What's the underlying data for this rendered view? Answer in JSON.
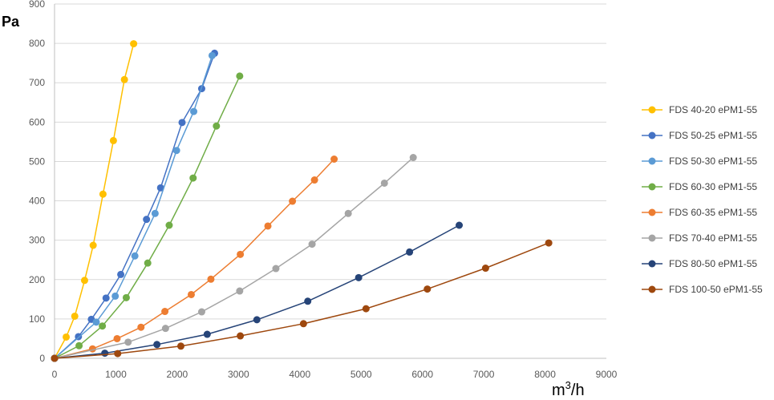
{
  "chart_data": {
    "type": "line",
    "xlabel": "m³/h",
    "xlabel_base": "m",
    "xlabel_sup": "3",
    "xlabel_tail": "/h",
    "ylabel": "Pa",
    "xlim": [
      0,
      9000
    ],
    "ylim": [
      0,
      900
    ],
    "x_ticks": [
      "0",
      "1000",
      "2000",
      "3000",
      "4000",
      "5000",
      "6000",
      "7000",
      "8000",
      "9000"
    ],
    "y_ticks": [
      "0",
      "100",
      "200",
      "300",
      "400",
      "500",
      "600",
      "700",
      "800",
      "900"
    ],
    "grid": "horizontal",
    "legend_position": "right",
    "series": [
      {
        "name": "FDS 40-20 ePM1-55",
        "color": "#FFC000",
        "x": [
          0,
          190,
          330,
          490,
          630,
          790,
          960,
          1140,
          1290
        ],
        "y": [
          0,
          54,
          107,
          198,
          287,
          417,
          553,
          708,
          799
        ]
      },
      {
        "name": "FDS 50-25 ePM1-55",
        "color": "#4472C4",
        "x": [
          0,
          390,
          600,
          840,
          1080,
          1500,
          1730,
          2080,
          2400,
          2610
        ],
        "y": [
          0,
          55,
          99,
          153,
          213,
          353,
          433,
          599,
          685,
          775
        ]
      },
      {
        "name": "FDS 50-30 ePM1-55",
        "color": "#5B9BD5",
        "x": [
          0,
          680,
          990,
          1310,
          1640,
          1990,
          2270,
          2570
        ],
        "y": [
          0,
          92,
          158,
          260,
          368,
          528,
          627,
          769
        ]
      },
      {
        "name": "FDS 60-30 ePM1-55",
        "color": "#70AD47",
        "x": [
          0,
          400,
          780,
          1170,
          1520,
          1870,
          2260,
          2640,
          3020
        ],
        "y": [
          0,
          32,
          82,
          154,
          242,
          338,
          458,
          590,
          717
        ]
      },
      {
        "name": "FDS 60-35 ePM1-55",
        "color": "#ED7D31",
        "x": [
          0,
          620,
          1020,
          1410,
          1800,
          2230,
          2550,
          3030,
          3480,
          3880,
          4240,
          4560
        ],
        "y": [
          0,
          24,
          50,
          79,
          119,
          162,
          201,
          264,
          336,
          399,
          453,
          506
        ]
      },
      {
        "name": "FDS 70-40 ePM1-55",
        "color": "#A5A5A5",
        "x": [
          0,
          1200,
          1810,
          2400,
          3020,
          3610,
          4200,
          4790,
          5380,
          5850
        ],
        "y": [
          0,
          41,
          76,
          118,
          171,
          228,
          290,
          368,
          445,
          510
        ]
      },
      {
        "name": "FDS 80-50 ePM1-55",
        "color": "#264478",
        "x": [
          0,
          820,
          1670,
          2490,
          3300,
          4130,
          4960,
          5790,
          6600
        ],
        "y": [
          0,
          13,
          35,
          61,
          98,
          145,
          205,
          270,
          338
        ]
      },
      {
        "name": "FDS 100-50 ePM1-55",
        "color": "#9E480E",
        "x": [
          0,
          1030,
          2060,
          3030,
          4060,
          5080,
          6080,
          7030,
          8060
        ],
        "y": [
          0,
          12,
          31,
          57,
          88,
          126,
          176,
          229,
          293
        ]
      }
    ]
  }
}
